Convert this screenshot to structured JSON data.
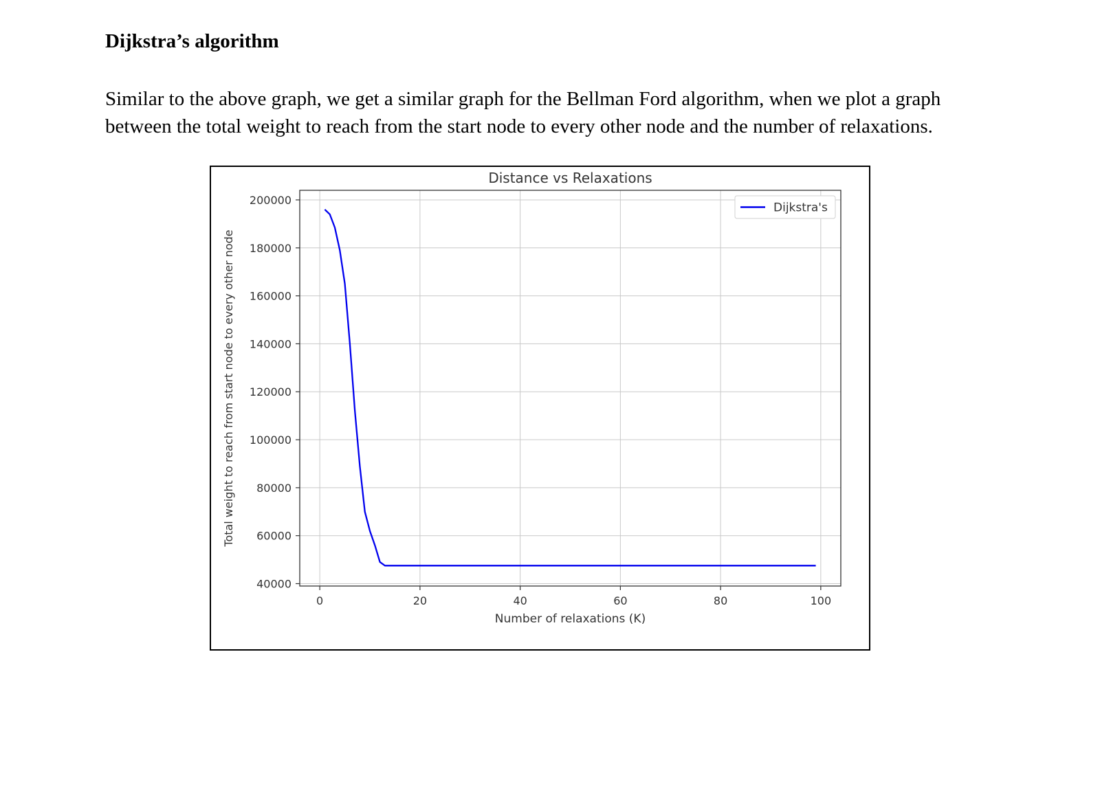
{
  "document": {
    "heading": "Dijkstra’s algorithm",
    "paragraph": "Similar to the above graph, we get a similar graph for the Bellman Ford algorithm, when we plot a graph between the total weight to reach from the start node to every other node and the number of relaxations."
  },
  "chart_data": {
    "type": "line",
    "title": "Distance vs Relaxations",
    "xlabel": "Number of relaxations (K)",
    "ylabel": "Total weight to reach from start node to every other node",
    "xlim": [
      -4,
      104
    ],
    "ylim": [
      39000,
      204000
    ],
    "xticks": [
      0,
      20,
      40,
      60,
      80,
      100
    ],
    "xtick_labels": [
      "0",
      "20",
      "40",
      "60",
      "80",
      "100"
    ],
    "yticks": [
      40000,
      60000,
      80000,
      100000,
      120000,
      140000,
      160000,
      180000,
      200000
    ],
    "ytick_labels": [
      "40000",
      "60000",
      "80000",
      "100000",
      "120000",
      "140000",
      "160000",
      "180000",
      "200000"
    ],
    "grid": true,
    "legend_position": "top-right",
    "series": [
      {
        "name": "Dijkstra's",
        "color": "#0000ee",
        "x": [
          1,
          2,
          3,
          4,
          5,
          6,
          7,
          8,
          9,
          10,
          11,
          12,
          13,
          20,
          40,
          60,
          80,
          99
        ],
        "y": [
          196000,
          194000,
          188500,
          179000,
          165000,
          140000,
          112000,
          89000,
          70000,
          62000,
          56000,
          49000,
          47500,
          47500,
          47500,
          47500,
          47500,
          47500
        ]
      }
    ]
  }
}
